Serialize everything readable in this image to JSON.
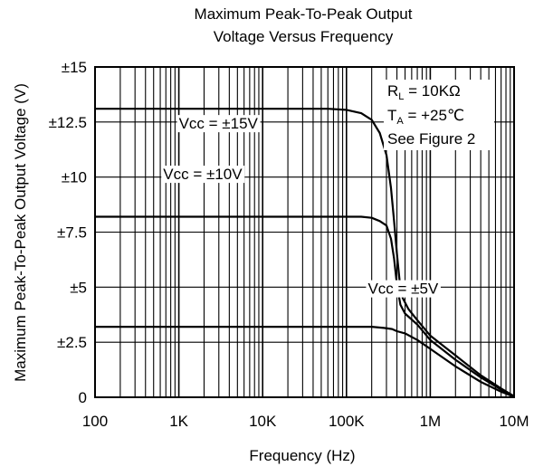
{
  "chart_data": {
    "type": "line",
    "title_lines": [
      "Maximum Peak-To-Peak Output",
      "Voltage Versus Frequency"
    ],
    "xlabel": "Frequency (Hz)",
    "ylabel": "Maximum Peak-To-Peak Output Voltage (V)",
    "x_scale": "log",
    "xlim": [
      100,
      10000000
    ],
    "ylim": [
      0,
      15
    ],
    "grid": true,
    "x_ticks": [
      {
        "value": 100,
        "label": "100"
      },
      {
        "value": 1000,
        "label": "1K"
      },
      {
        "value": 10000,
        "label": "10K"
      },
      {
        "value": 100000,
        "label": "100K"
      },
      {
        "value": 1000000,
        "label": "1M"
      },
      {
        "value": 10000000,
        "label": "10M"
      }
    ],
    "y_ticks": [
      {
        "value": 15,
        "label": "±15"
      },
      {
        "value": 12.5,
        "label": "±12.5"
      },
      {
        "value": 10,
        "label": "±10"
      },
      {
        "value": 7.5,
        "label": "±7.5"
      },
      {
        "value": 5,
        "label": "±5"
      },
      {
        "value": 2.5,
        "label": "±2.5"
      },
      {
        "value": 0,
        "label": "0"
      }
    ],
    "annotations": {
      "rl_main": "R",
      "rl_sub": "L",
      "rl_value": " = 10KΩ",
      "ta_main": "T",
      "ta_sub": "A",
      "ta_value": " = +25℃",
      "see": "See Figure 2"
    },
    "series": [
      {
        "name": "Vcc = ±15V",
        "label_at": [
          1000,
          12.2
        ],
        "points": [
          [
            100,
            13.1
          ],
          [
            10000,
            13.1
          ],
          [
            60000,
            13.1
          ],
          [
            100000,
            13.05
          ],
          [
            150000,
            12.9
          ],
          [
            200000,
            12.6
          ],
          [
            250000,
            12.0
          ],
          [
            300000,
            11.0
          ],
          [
            340000,
            9.5
          ],
          [
            370000,
            8.0
          ],
          [
            400000,
            6.5
          ],
          [
            430000,
            5.3
          ],
          [
            470000,
            4.5
          ],
          [
            550000,
            4.0
          ],
          [
            700000,
            3.5
          ],
          [
            1000000,
            2.8
          ],
          [
            2000000,
            1.9
          ],
          [
            4000000,
            1.0
          ],
          [
            7000000,
            0.4
          ],
          [
            10000000,
            0.05
          ]
        ]
      },
      {
        "name": "Vcc = ±10V",
        "label_at": [
          650,
          9.9
        ],
        "points": [
          [
            100,
            8.2
          ],
          [
            10000,
            8.2
          ],
          [
            150000,
            8.2
          ],
          [
            200000,
            8.15
          ],
          [
            250000,
            8.0
          ],
          [
            300000,
            7.8
          ],
          [
            340000,
            7.2
          ],
          [
            370000,
            6.3
          ],
          [
            400000,
            5.1
          ],
          [
            440000,
            4.2
          ],
          [
            500000,
            3.8
          ],
          [
            700000,
            3.3
          ],
          [
            1000000,
            2.6
          ],
          [
            2000000,
            1.7
          ],
          [
            4000000,
            0.9
          ],
          [
            7000000,
            0.35
          ],
          [
            10000000,
            0.05
          ]
        ]
      },
      {
        "name": "Vcc = ±5V",
        "label_at": [
          180000,
          4.7
        ],
        "points": [
          [
            100,
            3.2
          ],
          [
            10000,
            3.2
          ],
          [
            200000,
            3.2
          ],
          [
            280000,
            3.15
          ],
          [
            350000,
            3.1
          ],
          [
            400000,
            3.0
          ],
          [
            500000,
            2.9
          ],
          [
            700000,
            2.6
          ],
          [
            1000000,
            2.2
          ],
          [
            2000000,
            1.4
          ],
          [
            4000000,
            0.7
          ],
          [
            7000000,
            0.25
          ],
          [
            10000000,
            0.02
          ]
        ]
      }
    ]
  }
}
